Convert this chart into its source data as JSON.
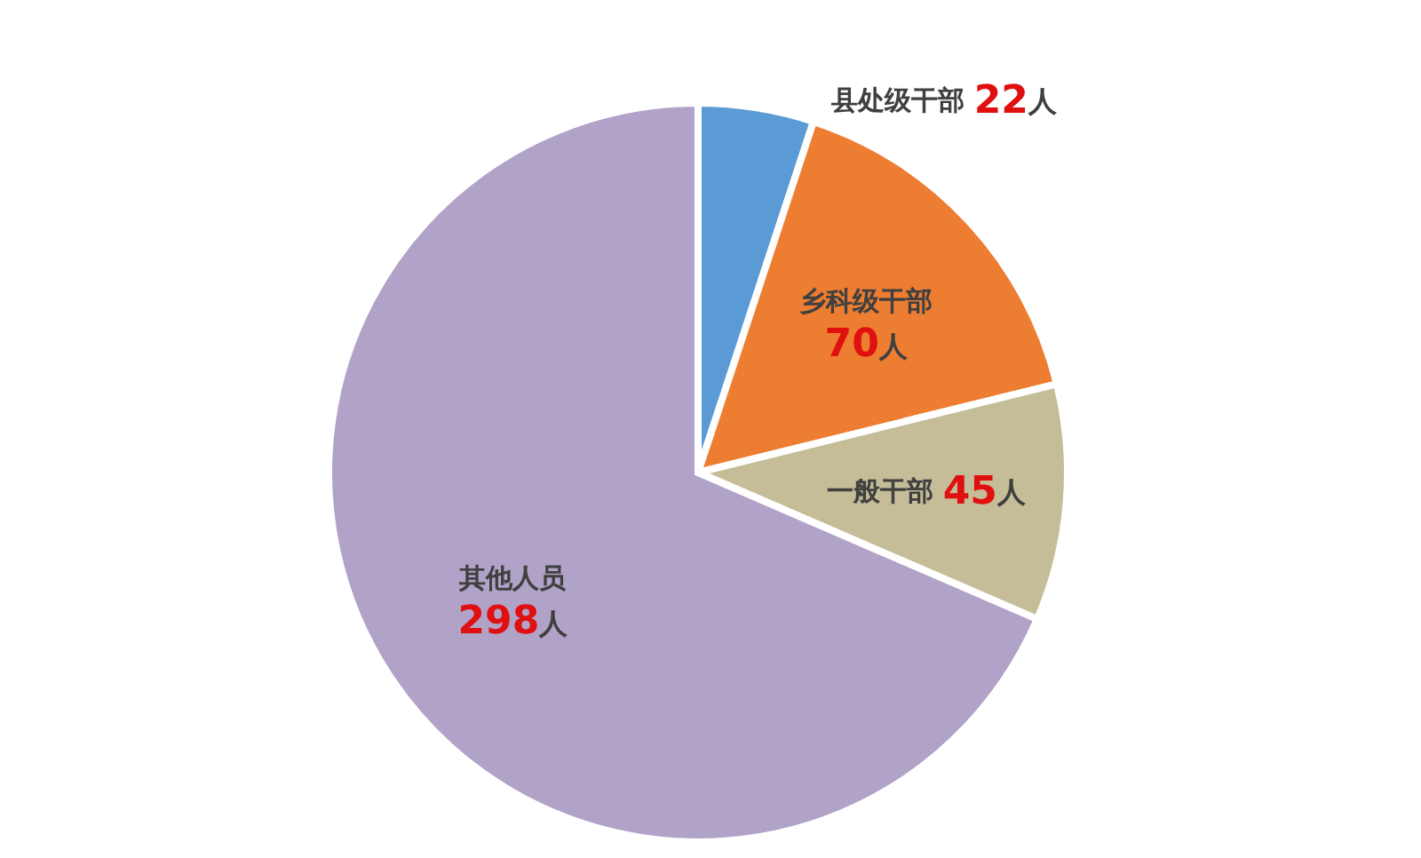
{
  "chart_data": {
    "type": "pie",
    "categories": [
      "县处级干部",
      "乡科级干部",
      "一般干部",
      "其他人员"
    ],
    "values": [
      22,
      70,
      45,
      298
    ],
    "value_labels": [
      "22人",
      "70人",
      "45人",
      "298人"
    ],
    "colors": [
      "#5b9bd5",
      "#ed7d31",
      "#c4bd97",
      "#b1a2c8"
    ],
    "legend": false
  }
}
